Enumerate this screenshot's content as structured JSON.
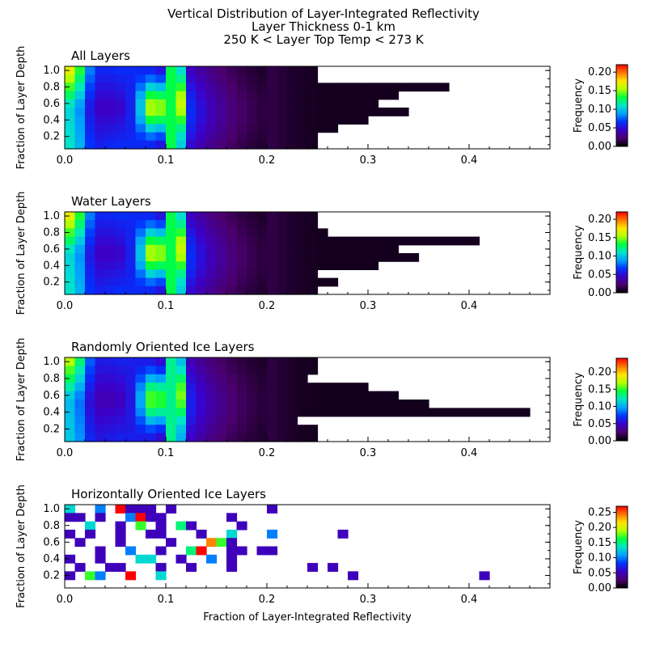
{
  "figure": {
    "title_lines": [
      "Vertical Distribution of Layer-Integrated Reflectivity",
      "Layer Thickness 0-1 km",
      "250 K < Layer Top Temp < 273 K"
    ],
    "xlabel": "Fraction of Layer-Integrated Reflectivity",
    "ylabel": "Fraction of Layer Depth",
    "colorbar_label": "Frequency",
    "colormap": [
      "#000000",
      "#4b006e",
      "#3c00c8",
      "#0032ff",
      "#00a0ff",
      "#00e6c8",
      "#00ff3c",
      "#b4ff00",
      "#ffe600",
      "#ff7800",
      "#ff0000"
    ]
  },
  "chart_data": [
    {
      "type": "heatmap",
      "title": "All Layers",
      "x_ticks": [
        "0.0",
        "0.1",
        "0.2",
        "0.3",
        "0.4"
      ],
      "y_ticks": [
        "1.0",
        "0.8",
        "0.6",
        "0.4",
        "0.2"
      ],
      "xlim": [
        0,
        0.48
      ],
      "ylim": [
        0.05,
        1.05
      ],
      "colorbar_ticks": [
        "0.20",
        "0.15",
        "0.10",
        "0.05",
        "0.00"
      ],
      "colorbar_range": [
        0,
        0.22
      ],
      "zero_cutoff_x": [
        0.255,
        0.255,
        0.385,
        0.33,
        0.315,
        0.345,
        0.305,
        0.27,
        0.255,
        0.25
      ]
    },
    {
      "type": "heatmap",
      "title": "Water Layers",
      "x_ticks": [
        "0.0",
        "0.1",
        "0.2",
        "0.3",
        "0.4"
      ],
      "y_ticks": [
        "1.0",
        "0.8",
        "0.6",
        "0.4",
        "0.2"
      ],
      "xlim": [
        0,
        0.48
      ],
      "ylim": [
        0.05,
        1.05
      ],
      "colorbar_ticks": [
        "0.20",
        "0.15",
        "0.10",
        "0.05",
        "0.00"
      ],
      "colorbar_range": [
        0,
        0.22
      ],
      "zero_cutoff_x": [
        0.255,
        0.255,
        0.265,
        0.41,
        0.335,
        0.35,
        0.31,
        0.255,
        0.27,
        0.25
      ]
    },
    {
      "type": "heatmap",
      "title": "Randomly Oriented Ice Layers",
      "x_ticks": [
        "0.0",
        "0.1",
        "0.2",
        "0.3",
        "0.4"
      ],
      "y_ticks": [
        "1.0",
        "0.8",
        "0.6",
        "0.4",
        "0.2"
      ],
      "xlim": [
        0,
        0.48
      ],
      "ylim": [
        0.05,
        1.05
      ],
      "colorbar_ticks": [
        "0.20",
        "0.15",
        "0.10",
        "0.05",
        "0.00"
      ],
      "colorbar_range": [
        0,
        0.24
      ],
      "zero_cutoff_x": [
        0.255,
        0.255,
        0.24,
        0.3,
        0.33,
        0.36,
        0.465,
        0.235,
        0.255,
        0.25
      ]
    },
    {
      "type": "heatmap",
      "title": "Horizontally Oriented Ice Layers",
      "x_ticks": [
        "0.0",
        "0.1",
        "0.2",
        "0.3",
        "0.4"
      ],
      "y_ticks": [
        "1.0",
        "0.8",
        "0.6",
        "0.4",
        "0.2"
      ],
      "xlim": [
        0,
        0.48
      ],
      "ylim": [
        0.05,
        1.05
      ],
      "colorbar_ticks": [
        "0.25",
        "0.20",
        "0.15",
        "0.10",
        "0.05",
        "0.00"
      ],
      "colorbar_range": [
        0,
        0.27
      ],
      "sparse_cells": [
        [
          0.005,
          1.0,
          0.13
        ],
        [
          0.035,
          1.0,
          0.1
        ],
        [
          0.055,
          1.0,
          0.27
        ],
        [
          0.065,
          1.0,
          0.05
        ],
        [
          0.075,
          1.0,
          0.05
        ],
        [
          0.085,
          1.0,
          0.05
        ],
        [
          0.105,
          1.0,
          0.05
        ],
        [
          0.205,
          1.0,
          0.05
        ],
        [
          0.005,
          0.9,
          0.05
        ],
        [
          0.015,
          0.9,
          0.05
        ],
        [
          0.035,
          0.9,
          0.05
        ],
        [
          0.065,
          0.9,
          0.1
        ],
        [
          0.075,
          0.9,
          0.27
        ],
        [
          0.085,
          0.9,
          0.05
        ],
        [
          0.095,
          0.9,
          0.05
        ],
        [
          0.165,
          0.9,
          0.05
        ],
        [
          0.025,
          0.8,
          0.13
        ],
        [
          0.055,
          0.8,
          0.05
        ],
        [
          0.075,
          0.8,
          0.17
        ],
        [
          0.095,
          0.8,
          0.05
        ],
        [
          0.115,
          0.8,
          0.15
        ],
        [
          0.125,
          0.8,
          0.05
        ],
        [
          0.175,
          0.8,
          0.05
        ],
        [
          0.005,
          0.7,
          0.05
        ],
        [
          0.025,
          0.7,
          0.05
        ],
        [
          0.055,
          0.7,
          0.05
        ],
        [
          0.085,
          0.7,
          0.05
        ],
        [
          0.095,
          0.7,
          0.05
        ],
        [
          0.135,
          0.7,
          0.05
        ],
        [
          0.165,
          0.7,
          0.13
        ],
        [
          0.205,
          0.7,
          0.1
        ],
        [
          0.275,
          0.7,
          0.05
        ],
        [
          0.015,
          0.6,
          0.05
        ],
        [
          0.055,
          0.6,
          0.05
        ],
        [
          0.105,
          0.6,
          0.05
        ],
        [
          0.145,
          0.6,
          0.24
        ],
        [
          0.155,
          0.6,
          0.17
        ],
        [
          0.165,
          0.6,
          0.05
        ],
        [
          0.035,
          0.5,
          0.05
        ],
        [
          0.065,
          0.5,
          0.1
        ],
        [
          0.095,
          0.5,
          0.05
        ],
        [
          0.125,
          0.5,
          0.15
        ],
        [
          0.135,
          0.5,
          0.27
        ],
        [
          0.165,
          0.5,
          0.05
        ],
        [
          0.175,
          0.5,
          0.05
        ],
        [
          0.195,
          0.5,
          0.05
        ],
        [
          0.205,
          0.5,
          0.05
        ],
        [
          0.005,
          0.4,
          0.05
        ],
        [
          0.035,
          0.4,
          0.05
        ],
        [
          0.075,
          0.4,
          0.13
        ],
        [
          0.085,
          0.4,
          0.13
        ],
        [
          0.115,
          0.4,
          0.05
        ],
        [
          0.145,
          0.4,
          0.1
        ],
        [
          0.165,
          0.4,
          0.05
        ],
        [
          0.015,
          0.3,
          0.05
        ],
        [
          0.045,
          0.3,
          0.05
        ],
        [
          0.055,
          0.3,
          0.05
        ],
        [
          0.095,
          0.3,
          0.05
        ],
        [
          0.125,
          0.3,
          0.05
        ],
        [
          0.165,
          0.3,
          0.05
        ],
        [
          0.245,
          0.3,
          0.05
        ],
        [
          0.265,
          0.3,
          0.05
        ],
        [
          0.005,
          0.2,
          0.05
        ],
        [
          0.025,
          0.2,
          0.17
        ],
        [
          0.035,
          0.2,
          0.1
        ],
        [
          0.065,
          0.2,
          0.27
        ],
        [
          0.095,
          0.2,
          0.13
        ],
        [
          0.285,
          0.2,
          0.05
        ],
        [
          0.415,
          0.2,
          0.05
        ]
      ]
    }
  ]
}
